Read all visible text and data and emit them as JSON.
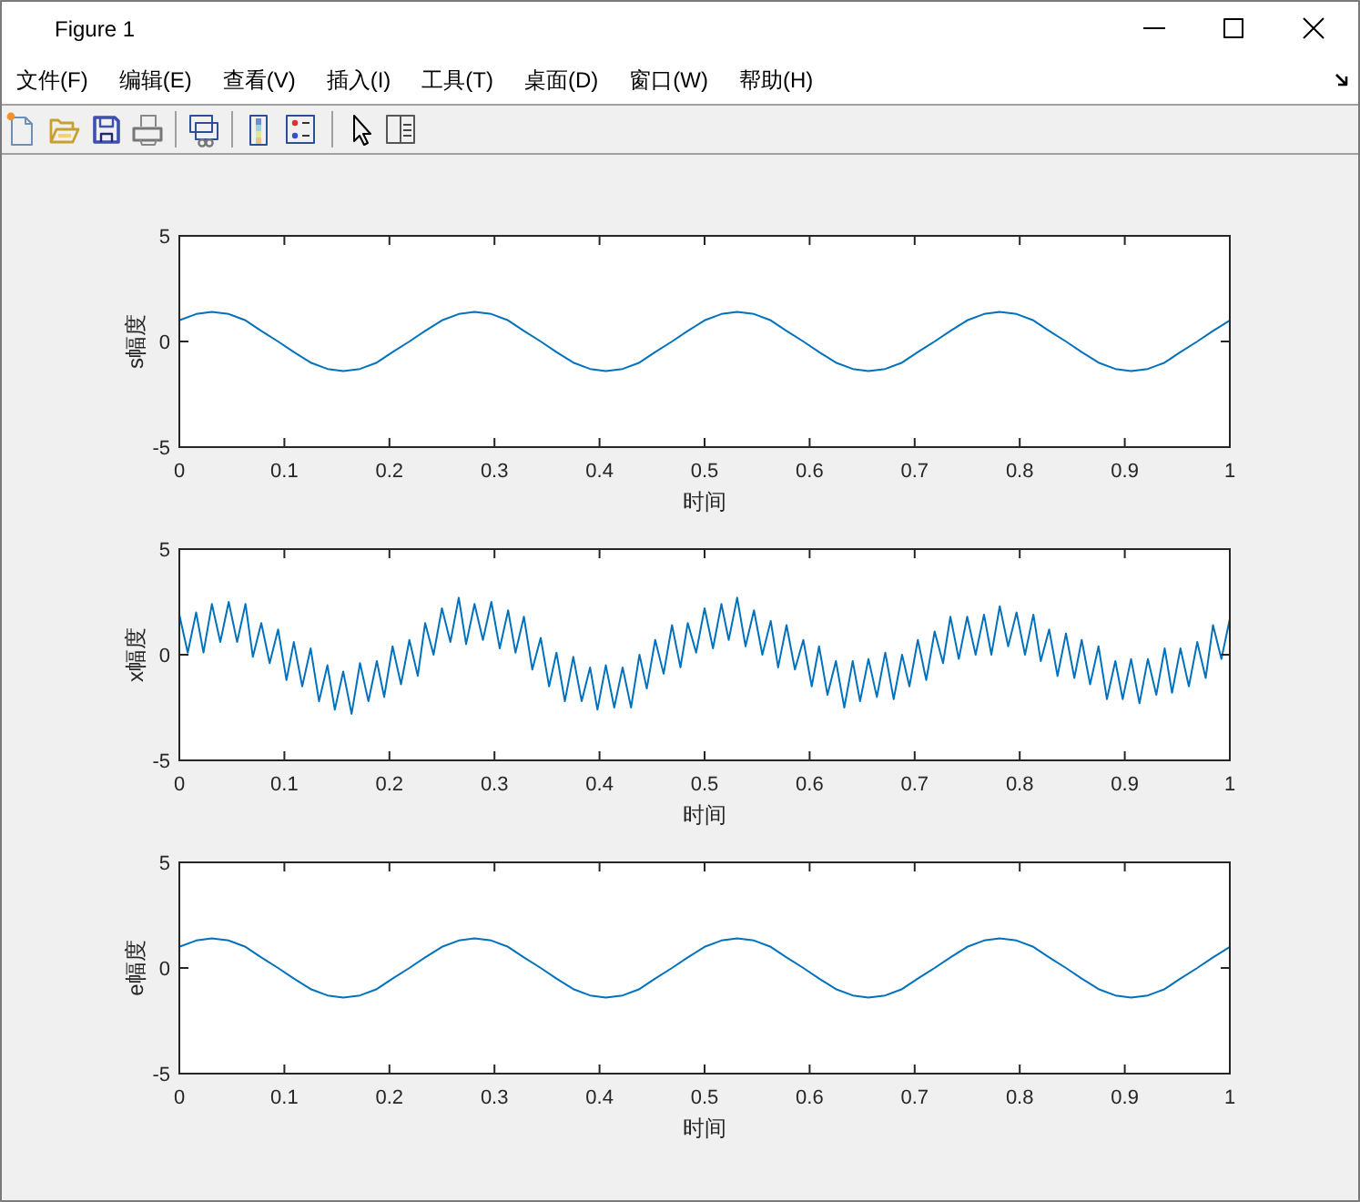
{
  "chart_data": [
    {
      "type": "other",
      "title": "Figure 1",
      "annotations": [
        "文件(F)",
        "编辑(E)",
        "查看(V)",
        "插入(I)",
        "工具(T)",
        "桌面(D)",
        "窗口(W)",
        "帮助(H)"
      ]
    },
    {
      "type": "line",
      "xlabel": "时间",
      "ylabel": "s幅度",
      "color": "#0072bd",
      "xlim": [
        0,
        1
      ],
      "ylim": [
        -5,
        5
      ],
      "xticks": [
        0,
        0.1,
        0.2,
        0.3,
        0.4,
        0.5,
        0.6,
        0.7,
        0.8,
        0.9,
        1
      ],
      "yticks": [
        -5,
        0,
        5
      ],
      "x": [
        0,
        0.016,
        0.031,
        0.047,
        0.063,
        0.078,
        0.094,
        0.109,
        0.125,
        0.141,
        0.156,
        0.172,
        0.188,
        0.203,
        0.219,
        0.234,
        0.25,
        0.266,
        0.281,
        0.297,
        0.313,
        0.328,
        0.344,
        0.359,
        0.375,
        0.391,
        0.406,
        0.422,
        0.438,
        0.453,
        0.469,
        0.484,
        0.5,
        0.516,
        0.531,
        0.547,
        0.563,
        0.578,
        0.594,
        0.609,
        0.625,
        0.641,
        0.656,
        0.672,
        0.688,
        0.703,
        0.719,
        0.734,
        0.75,
        0.766,
        0.781,
        0.797,
        0.813,
        0.828,
        0.844,
        0.859,
        0.875,
        0.891,
        0.906,
        0.922,
        0.938,
        0.953,
        0.969,
        0.984,
        1
      ],
      "values": [
        1,
        1.3,
        1.4,
        1.3,
        1,
        0.5,
        0,
        -0.5,
        -1,
        -1.3,
        -1.4,
        -1.3,
        -1,
        -0.5,
        0,
        0.5,
        1,
        1.3,
        1.4,
        1.3,
        1,
        0.5,
        0,
        -0.5,
        -1,
        -1.3,
        -1.4,
        -1.3,
        -1,
        -0.5,
        0,
        0.5,
        1,
        1.3,
        1.4,
        1.3,
        1,
        0.5,
        0,
        -0.5,
        -1,
        -1.3,
        -1.4,
        -1.3,
        -1,
        -0.5,
        0,
        0.5,
        1,
        1.3,
        1.4,
        1.3,
        1,
        0.5,
        0,
        -0.5,
        -1,
        -1.3,
        -1.4,
        -1.3,
        -1,
        -0.5,
        0,
        0.5,
        1
      ]
    },
    {
      "type": "line",
      "xlabel": "时间",
      "ylabel": "x幅度",
      "color": "#0072bd",
      "xlim": [
        0,
        1
      ],
      "ylim": [
        -5,
        5
      ],
      "xticks": [
        0,
        0.1,
        0.2,
        0.3,
        0.4,
        0.5,
        0.6,
        0.7,
        0.8,
        0.9,
        1
      ],
      "yticks": [
        -5,
        0,
        5
      ],
      "x": [
        0,
        0.008,
        0.016,
        0.023,
        0.031,
        0.039,
        0.047,
        0.055,
        0.063,
        0.07,
        0.078,
        0.086,
        0.094,
        0.102,
        0.109,
        0.117,
        0.125,
        0.133,
        0.141,
        0.148,
        0.156,
        0.164,
        0.172,
        0.18,
        0.188,
        0.195,
        0.203,
        0.211,
        0.219,
        0.227,
        0.234,
        0.242,
        0.25,
        0.258,
        0.266,
        0.273,
        0.281,
        0.289,
        0.297,
        0.305,
        0.313,
        0.32,
        0.328,
        0.336,
        0.344,
        0.352,
        0.359,
        0.367,
        0.375,
        0.383,
        0.391,
        0.398,
        0.406,
        0.414,
        0.422,
        0.43,
        0.438,
        0.445,
        0.453,
        0.461,
        0.469,
        0.477,
        0.484,
        0.492,
        0.5,
        0.508,
        0.516,
        0.523,
        0.531,
        0.539,
        0.547,
        0.555,
        0.563,
        0.57,
        0.578,
        0.586,
        0.594,
        0.602,
        0.609,
        0.617,
        0.625,
        0.633,
        0.641,
        0.648,
        0.656,
        0.664,
        0.672,
        0.68,
        0.688,
        0.695,
        0.703,
        0.711,
        0.719,
        0.727,
        0.734,
        0.742,
        0.75,
        0.758,
        0.766,
        0.773,
        0.781,
        0.789,
        0.797,
        0.805,
        0.813,
        0.82,
        0.828,
        0.836,
        0.844,
        0.852,
        0.859,
        0.867,
        0.875,
        0.883,
        0.891,
        0.898,
        0.906,
        0.914,
        0.922,
        0.93,
        0.938,
        0.945,
        0.953,
        0.961,
        0.969,
        0.977,
        0.984,
        0.992,
        1
      ],
      "values": [
        1.9,
        0.1,
        2.0,
        0.1,
        2.4,
        0.6,
        2.5,
        0.6,
        2.4,
        -0.1,
        1.5,
        -0.4,
        1.2,
        -1.2,
        0.6,
        -1.5,
        0.3,
        -2.2,
        -0.5,
        -2.6,
        -0.8,
        -2.8,
        -0.4,
        -2.2,
        -0.3,
        -2.0,
        0.4,
        -1.4,
        0.7,
        -1.0,
        1.5,
        0.0,
        2.2,
        0.6,
        2.7,
        0.5,
        2.4,
        0.7,
        2.5,
        0.3,
        2.1,
        0.1,
        1.8,
        -0.7,
        0.8,
        -1.5,
        0.1,
        -2.2,
        -0.1,
        -2.2,
        -0.6,
        -2.6,
        -0.5,
        -2.5,
        -0.6,
        -2.5,
        0.0,
        -1.6,
        0.7,
        -0.9,
        1.4,
        -0.6,
        1.5,
        0.1,
        2.2,
        0.3,
        2.4,
        0.7,
        2.7,
        0.4,
        2.1,
        0.0,
        1.6,
        -0.6,
        1.4,
        -0.7,
        0.7,
        -1.5,
        0.4,
        -1.9,
        -0.3,
        -2.5,
        -0.3,
        -2.2,
        -0.2,
        -2.0,
        0.1,
        -2.1,
        0.0,
        -1.5,
        0.7,
        -1.2,
        1.1,
        -0.4,
        1.8,
        -0.2,
        1.8,
        0.0,
        1.9,
        0.0,
        2.3,
        0.4,
        2.0,
        0.0,
        1.9,
        -0.3,
        1.2,
        -1.0,
        1.0,
        -1.1,
        0.7,
        -1.4,
        0.4,
        -2.1,
        -0.3,
        -2.1,
        -0.2,
        -2.3,
        -0.2,
        -1.9,
        0.3,
        -1.8,
        0.3,
        -1.5,
        0.6,
        -1.1,
        1.4,
        -0.2,
        1.7
      ]
    },
    {
      "type": "line",
      "xlabel": "时间",
      "ylabel": "e幅度",
      "color": "#0072bd",
      "xlim": [
        0,
        1
      ],
      "ylim": [
        -5,
        5
      ],
      "xticks": [
        0,
        0.1,
        0.2,
        0.3,
        0.4,
        0.5,
        0.6,
        0.7,
        0.8,
        0.9,
        1
      ],
      "yticks": [
        -5,
        0,
        5
      ],
      "x": [
        0,
        0.016,
        0.031,
        0.047,
        0.063,
        0.078,
        0.094,
        0.109,
        0.125,
        0.141,
        0.156,
        0.172,
        0.188,
        0.203,
        0.219,
        0.234,
        0.25,
        0.266,
        0.281,
        0.297,
        0.313,
        0.328,
        0.344,
        0.359,
        0.375,
        0.391,
        0.406,
        0.422,
        0.438,
        0.453,
        0.469,
        0.484,
        0.5,
        0.516,
        0.531,
        0.547,
        0.563,
        0.578,
        0.594,
        0.609,
        0.625,
        0.641,
        0.656,
        0.672,
        0.688,
        0.703,
        0.719,
        0.734,
        0.75,
        0.766,
        0.781,
        0.797,
        0.813,
        0.828,
        0.844,
        0.859,
        0.875,
        0.891,
        0.906,
        0.922,
        0.938,
        0.953,
        0.969,
        0.984,
        1
      ],
      "values": [
        1,
        1.3,
        1.4,
        1.3,
        1,
        0.5,
        0,
        -0.5,
        -1,
        -1.3,
        -1.4,
        -1.3,
        -1,
        -0.5,
        0,
        0.5,
        1,
        1.3,
        1.4,
        1.3,
        1,
        0.5,
        0,
        -0.5,
        -1,
        -1.3,
        -1.4,
        -1.3,
        -1,
        -0.5,
        0,
        0.5,
        1,
        1.3,
        1.4,
        1.3,
        1,
        0.5,
        0,
        -0.5,
        -1,
        -1.3,
        -1.4,
        -1.3,
        -1,
        -0.5,
        0,
        0.5,
        1,
        1.3,
        1.4,
        1.3,
        1,
        0.5,
        0,
        -0.5,
        -1,
        -1.3,
        -1.4,
        -1.3,
        -1,
        -0.5,
        0,
        0.5,
        1
      ]
    }
  ]
}
